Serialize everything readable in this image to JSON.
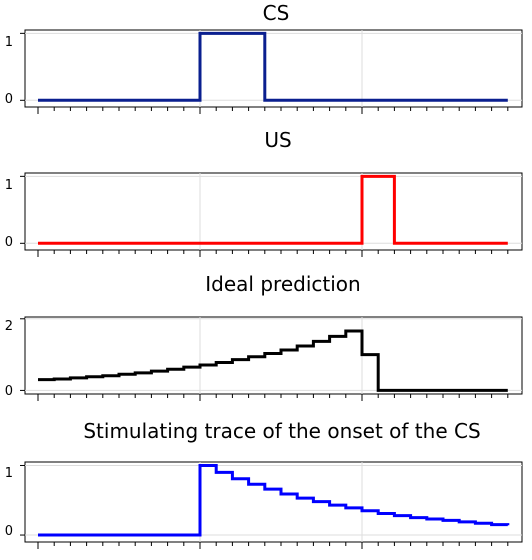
{
  "chart_data": [
    {
      "type": "line",
      "title": "CS",
      "xlabel": "",
      "ylabel": "",
      "step": true,
      "color": "#0a1f8f",
      "ylim": [
        -0.1,
        1.05
      ],
      "yticks": [
        0,
        1
      ],
      "ytick_labels": [
        "0",
        "1"
      ],
      "series": [
        {
          "x": [
            0,
            10,
            10,
            14,
            14,
            29
          ],
          "y": [
            0,
            0,
            1,
            1,
            0,
            0
          ]
        }
      ]
    },
    {
      "type": "line",
      "title": "US",
      "xlabel": "",
      "ylabel": "",
      "step": true,
      "color": "#ff0000",
      "ylim": [
        -0.1,
        1.05
      ],
      "yticks": [
        0,
        1
      ],
      "ytick_labels": [
        "0",
        "1"
      ],
      "series": [
        {
          "x": [
            0,
            20,
            20,
            22,
            22,
            29
          ],
          "y": [
            0,
            0,
            1,
            1,
            0,
            0
          ]
        }
      ]
    },
    {
      "type": "line",
      "title": "Ideal prediction",
      "xlabel": "",
      "ylabel": "",
      "step": true,
      "color": "#000000",
      "ylim": [
        -0.1,
        2.05
      ],
      "yticks": [
        0,
        2
      ],
      "ytick_labels": [
        "0",
        "2"
      ],
      "series": [
        {
          "x": [
            0,
            1,
            2,
            3,
            4,
            5,
            6,
            7,
            8,
            9,
            10,
            11,
            12,
            13,
            14,
            15,
            16,
            17,
            18,
            19,
            20,
            21,
            22,
            23,
            24,
            25,
            26,
            27,
            28,
            29
          ],
          "y": [
            0.3,
            0.32,
            0.35,
            0.38,
            0.41,
            0.45,
            0.49,
            0.54,
            0.59,
            0.65,
            0.71,
            0.78,
            0.86,
            0.94,
            1.03,
            1.13,
            1.24,
            1.37,
            1.51,
            1.66,
            1.0,
            0.0,
            0.0,
            0.0,
            0.0,
            0.0,
            0.0,
            0.0,
            0.0,
            0.0
          ]
        }
      ]
    },
    {
      "type": "line",
      "title": "Stimulating trace of the onset of the CS",
      "xlabel": "",
      "ylabel": "",
      "step": true,
      "color": "#0000ff",
      "ylim": [
        -0.1,
        1.05
      ],
      "yticks": [
        0,
        1
      ],
      "ytick_labels": [
        "0",
        "1"
      ],
      "series": [
        {
          "x": [
            0,
            1,
            2,
            3,
            4,
            5,
            6,
            7,
            8,
            9,
            10,
            11,
            12,
            13,
            14,
            15,
            16,
            17,
            18,
            19,
            20,
            21,
            22,
            23,
            24,
            25,
            26,
            27,
            28,
            29
          ],
          "y": [
            0,
            0,
            0,
            0,
            0,
            0,
            0,
            0,
            0,
            0,
            1.0,
            0.9,
            0.81,
            0.73,
            0.66,
            0.59,
            0.53,
            0.48,
            0.43,
            0.39,
            0.35,
            0.31,
            0.28,
            0.25,
            0.23,
            0.21,
            0.19,
            0.17,
            0.15,
            0.14
          ]
        }
      ]
    }
  ]
}
